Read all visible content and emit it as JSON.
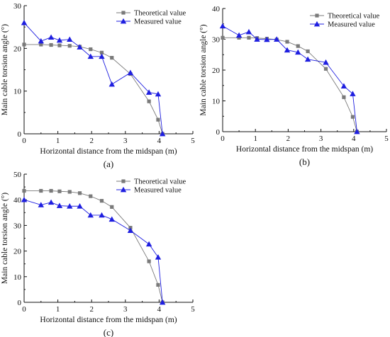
{
  "chart_data": [
    {
      "type": "line",
      "panel_label": "(a)",
      "xlabel": "Horizontal distance from the midspan (m)",
      "ylabel": "Main cable torsion angle (°)",
      "xlim": [
        0,
        5
      ],
      "ylim": [
        0,
        30
      ],
      "xticks": [
        0,
        1,
        2,
        3,
        4,
        5
      ],
      "yticks": [
        0,
        10,
        20,
        30
      ],
      "grid": false,
      "legend_position": "top-right",
      "series": [
        {
          "name": "Theoretical value",
          "color": "#7a7a7a",
          "marker": "square",
          "x": [
            0,
            0.5,
            0.8,
            1.05,
            1.35,
            1.65,
            1.97,
            2.3,
            2.6,
            3.15,
            3.7,
            3.97,
            4.1
          ],
          "y": [
            20.9,
            20.9,
            20.8,
            20.7,
            20.6,
            20.4,
            19.8,
            19.0,
            17.8,
            14.0,
            7.6,
            3.3,
            0
          ]
        },
        {
          "name": "Measured value",
          "color": "#1f1fe0",
          "marker": "triangle",
          "x": [
            0,
            0.5,
            0.8,
            1.05,
            1.35,
            1.65,
            1.97,
            2.3,
            2.6,
            3.15,
            3.7,
            3.97,
            4.1
          ],
          "y": [
            26.0,
            21.7,
            22.6,
            21.9,
            22.1,
            20.3,
            18.1,
            18.1,
            11.6,
            14.3,
            9.7,
            9.3,
            0
          ]
        }
      ]
    },
    {
      "type": "line",
      "panel_label": "(b)",
      "xlabel": "Horizontal distance from the midspan (m)",
      "ylabel": "Main cable torsion angle (°)",
      "xlim": [
        0,
        5
      ],
      "ylim": [
        0,
        40
      ],
      "xticks": [
        0,
        1,
        2,
        3,
        4,
        5
      ],
      "yticks": [
        0,
        10,
        20,
        30,
        40
      ],
      "grid": false,
      "legend_position": "top-right",
      "series": [
        {
          "name": "Theoretical value",
          "color": "#7a7a7a",
          "marker": "square",
          "x": [
            0,
            0.5,
            0.8,
            1.05,
            1.35,
            1.65,
            1.97,
            2.3,
            2.6,
            3.15,
            3.7,
            3.97,
            4.1
          ],
          "y": [
            30.5,
            30.5,
            30.5,
            30.4,
            30.2,
            29.9,
            29.2,
            27.8,
            26.1,
            20.4,
            11.2,
            4.8,
            0
          ]
        },
        {
          "name": "Measured value",
          "color": "#1f1fe0",
          "marker": "triangle",
          "x": [
            0,
            0.5,
            0.8,
            1.05,
            1.35,
            1.65,
            1.97,
            2.3,
            2.6,
            3.15,
            3.7,
            3.97,
            4.1
          ],
          "y": [
            34.3,
            31.3,
            32.4,
            30.0,
            29.9,
            30.0,
            26.5,
            25.8,
            23.5,
            22.5,
            14.8,
            12.3,
            0
          ]
        }
      ]
    },
    {
      "type": "line",
      "panel_label": "(c)",
      "xlabel": "Horizontal distance from the midspan (m)",
      "ylabel": "Main cable torsion angle (°)",
      "xlim": [
        0,
        5
      ],
      "ylim": [
        0,
        50
      ],
      "xticks": [
        0,
        1,
        2,
        3,
        4,
        5
      ],
      "yticks": [
        0,
        10,
        20,
        30,
        40,
        50
      ],
      "grid": false,
      "legend_position": "top-right",
      "series": [
        {
          "name": "Theoretical value",
          "color": "#7a7a7a",
          "marker": "square",
          "x": [
            0,
            0.5,
            0.8,
            1.05,
            1.35,
            1.65,
            1.97,
            2.3,
            2.6,
            3.15,
            3.7,
            3.97,
            4.1
          ],
          "y": [
            43.5,
            43.5,
            43.5,
            43.3,
            43.1,
            42.6,
            41.4,
            39.6,
            37.2,
            29.1,
            16.0,
            6.8,
            0
          ]
        },
        {
          "name": "Measured value",
          "color": "#1f1fe0",
          "marker": "triangle",
          "x": [
            0,
            0.5,
            0.8,
            1.05,
            1.35,
            1.65,
            1.97,
            2.3,
            2.6,
            3.15,
            3.7,
            3.97,
            4.1
          ],
          "y": [
            40.0,
            38.0,
            39.0,
            37.7,
            37.5,
            37.5,
            34.0,
            34.0,
            32.4,
            28.0,
            22.7,
            17.6,
            0
          ]
        }
      ]
    }
  ]
}
